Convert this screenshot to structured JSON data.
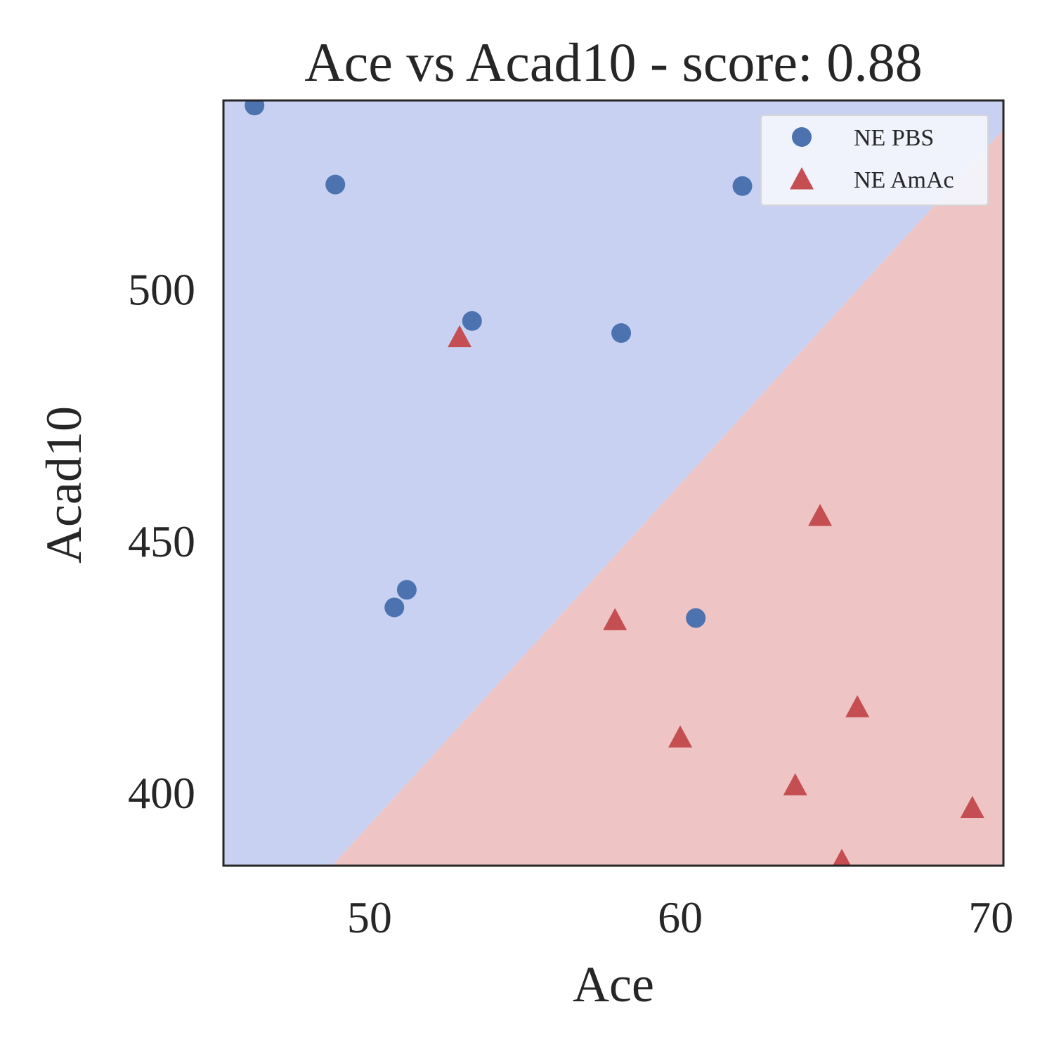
{
  "chart_data": {
    "type": "scatter",
    "title": "Ace vs Acad10 - score: 0.88",
    "xlabel": "Ace",
    "ylabel": "Acad10",
    "xlim": [
      45.3,
      70.4
    ],
    "ylim": [
      385.5,
      537.5
    ],
    "xticks": [
      50,
      60,
      70
    ],
    "yticks": [
      400,
      450,
      500
    ],
    "grid": false,
    "legend_position": "top-right",
    "decision_boundary": {
      "description_points": [
        [
          48.8,
          385.5
        ],
        [
          70.4,
          531.7
        ]
      ],
      "region_above_color": "#c9d1f2",
      "region_below_color": "#efc4c4"
    },
    "series": [
      {
        "name": "NE PBS",
        "marker": "circle",
        "color": "#4c72b0",
        "points": [
          [
            46.3,
            536.5
          ],
          [
            48.9,
            520.8
          ],
          [
            62.0,
            520.5
          ],
          [
            53.3,
            493.7
          ],
          [
            58.1,
            491.3
          ],
          [
            51.2,
            440.3
          ],
          [
            50.8,
            436.8
          ],
          [
            60.5,
            434.7
          ]
        ]
      },
      {
        "name": "NE AmAc",
        "marker": "triangle",
        "color": "#c44e52",
        "points": [
          [
            52.9,
            490.5
          ],
          [
            64.5,
            455.0
          ],
          [
            57.9,
            434.3
          ],
          [
            65.7,
            417.0
          ],
          [
            60.0,
            411.0
          ],
          [
            63.7,
            401.5
          ],
          [
            69.4,
            397.0
          ],
          [
            65.2,
            386.5
          ]
        ]
      }
    ]
  }
}
